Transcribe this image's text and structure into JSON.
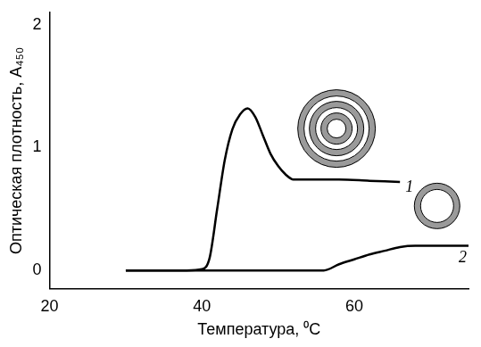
{
  "chart_data": {
    "type": "line",
    "x_label": "Температура, ⁰C",
    "y_label": "Оптическая плотность, A₄₅₀",
    "xlim": [
      20,
      75
    ],
    "xticks": [
      20,
      40,
      60
    ],
    "ylim": [
      -0.15,
      2.1
    ],
    "yticks": [
      0,
      1,
      2
    ],
    "grid": false,
    "series": [
      {
        "name": "1",
        "color": "#000000",
        "x": [
          30,
          35,
          38,
          40,
          41,
          42,
          43,
          44,
          45,
          46,
          47,
          48,
          49,
          50,
          51,
          52,
          54,
          58,
          62,
          66
        ],
        "values": [
          0,
          0,
          0,
          0.01,
          0.1,
          0.5,
          0.9,
          1.15,
          1.27,
          1.32,
          1.25,
          1.1,
          0.95,
          0.85,
          0.78,
          0.74,
          0.74,
          0.74,
          0.73,
          0.72
        ]
      },
      {
        "name": "2",
        "color": "#000000",
        "x": [
          30,
          40,
          50,
          56,
          58,
          60,
          62,
          64,
          66,
          68,
          72,
          75
        ],
        "values": [
          0,
          0,
          0,
          0,
          0.05,
          0.09,
          0.13,
          0.16,
          0.19,
          0.2,
          0.2,
          0.2
        ]
      }
    ]
  }
}
